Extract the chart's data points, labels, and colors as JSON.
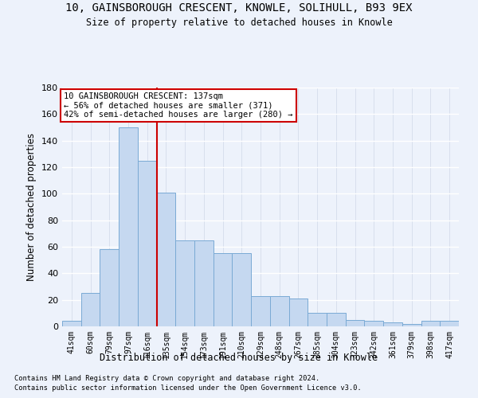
{
  "title1": "10, GAINSBOROUGH CRESCENT, KNOWLE, SOLIHULL, B93 9EX",
  "title2": "Size of property relative to detached houses in Knowle",
  "xlabel": "Distribution of detached houses by size in Knowle",
  "ylabel": "Number of detached properties",
  "categories": [
    "41sqm",
    "60sqm",
    "79sqm",
    "97sqm",
    "116sqm",
    "135sqm",
    "154sqm",
    "173sqm",
    "191sqm",
    "210sqm",
    "229sqm",
    "248sqm",
    "267sqm",
    "285sqm",
    "304sqm",
    "323sqm",
    "342sqm",
    "361sqm",
    "379sqm",
    "398sqm",
    "417sqm"
  ],
  "values": [
    4,
    25,
    58,
    150,
    125,
    101,
    65,
    65,
    55,
    55,
    23,
    23,
    21,
    10,
    10,
    5,
    4,
    3,
    2,
    4,
    4
  ],
  "bar_color": "#c5d8f0",
  "bar_edge_color": "#7aaad4",
  "vline_color": "#cc0000",
  "vline_pos": 4.5,
  "ylim": [
    0,
    180
  ],
  "yticks": [
    0,
    20,
    40,
    60,
    80,
    100,
    120,
    140,
    160,
    180
  ],
  "annotation_title": "10 GAINSBOROUGH CRESCENT: 137sqm",
  "annotation_line1": "← 56% of detached houses are smaller (371)",
  "annotation_line2": "42% of semi-detached houses are larger (280) →",
  "annotation_box_color": "#ffffff",
  "annotation_box_edge": "#cc0000",
  "footer1": "Contains HM Land Registry data © Crown copyright and database right 2024.",
  "footer2": "Contains public sector information licensed under the Open Government Licence v3.0.",
  "bg_color": "#edf2fb",
  "grid_color": "#d0d8e8"
}
